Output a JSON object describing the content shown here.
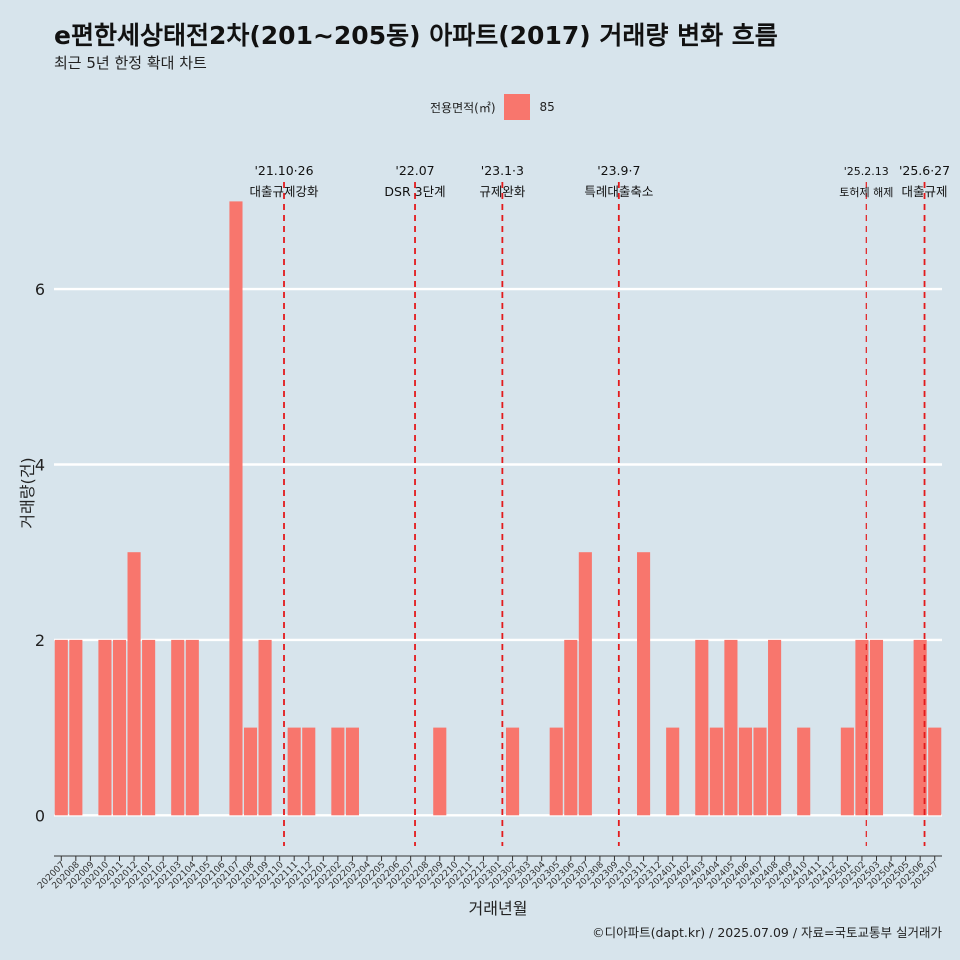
{
  "chart_data": {
    "type": "bar",
    "title": "e편한세상태전2차(201~205동) 아파트(2017) 거래량 변화 흐름",
    "subtitle": "최근 5년 한정 확대 차트",
    "xlabel": "거래년월",
    "ylabel": "거래량(건)",
    "caption": "©디아파트(dapt.kr) / 2025.07.09 / 자료=국토교통부 실거래가",
    "legend": {
      "title": "전용면적(㎡)",
      "position": "top",
      "entries": [
        {
          "label": "85",
          "color": "#F8766D"
        }
      ]
    },
    "ylim": [
      -0.35,
      7.7
    ],
    "yticks": [
      0,
      2,
      4,
      6
    ],
    "grid": true,
    "bar_color": "#F8766D",
    "categories": [
      "202007",
      "202008",
      "202009",
      "202010",
      "202011",
      "202012",
      "202101",
      "202102",
      "202103",
      "202104",
      "202105",
      "202106",
      "202107",
      "202108",
      "202109",
      "202110",
      "202111",
      "202112",
      "202201",
      "202202",
      "202203",
      "202204",
      "202205",
      "202206",
      "202207",
      "202208",
      "202209",
      "202210",
      "202211",
      "202212",
      "202301",
      "202302",
      "202303",
      "202304",
      "202305",
      "202306",
      "202307",
      "202308",
      "202309",
      "202310",
      "202311",
      "202312",
      "202401",
      "202402",
      "202403",
      "202404",
      "202405",
      "202406",
      "202407",
      "202408",
      "202409",
      "202410",
      "202411",
      "202412",
      "202501",
      "202502",
      "202503",
      "202504",
      "202505",
      "202506",
      "202507"
    ],
    "values": [
      2,
      2,
      0,
      2,
      2,
      3,
      2,
      0,
      2,
      2,
      0,
      0,
      7,
      1,
      2,
      0,
      1,
      1,
      0,
      1,
      1,
      0,
      0,
      0,
      0,
      0,
      1,
      0,
      0,
      0,
      0,
      1,
      0,
      0,
      1,
      2,
      3,
      0,
      0,
      0,
      3,
      0,
      1,
      0,
      2,
      1,
      2,
      1,
      1,
      2,
      0,
      1,
      0,
      0,
      1,
      2,
      2,
      0,
      0,
      2,
      1
    ],
    "annotations": [
      {
        "date": "'21.10·26",
        "label": "대출규제강화",
        "index": 15.3,
        "size": "normal"
      },
      {
        "date": "'22.07",
        "label": "DSR 3단계",
        "index": 24.3,
        "size": "normal"
      },
      {
        "date": "'23.1·3",
        "label": "규제완화",
        "index": 30.3,
        "size": "normal"
      },
      {
        "date": "'23.9·7",
        "label": "특례대출축소",
        "index": 38.3,
        "size": "normal"
      },
      {
        "date": "'25.2.13",
        "label": "토허제 해제",
        "index": 55.3,
        "size": "small"
      },
      {
        "date": "'25.6·27",
        "label": "대출규제",
        "index": 59.3,
        "size": "normal"
      }
    ],
    "annotation_color": "#e31a1c"
  }
}
